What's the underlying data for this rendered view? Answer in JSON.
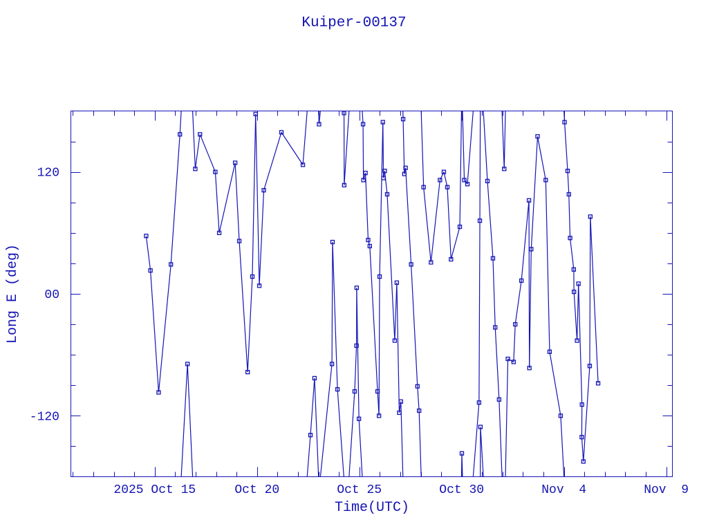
{
  "chart_data": {
    "type": "line",
    "title": "Kuiper-00137",
    "xlabel": "Time(UTC)",
    "ylabel": "Long E (deg)",
    "x_unit": "day of October 2025 (UTC)",
    "xlim": [
      10.9,
      40.3
    ],
    "ylim": [
      -180,
      180
    ],
    "x_ticks": [
      {
        "value": 15,
        "label": "2025 Oct 15"
      },
      {
        "value": 20,
        "label": "Oct 20"
      },
      {
        "value": 25,
        "label": "Oct 25"
      },
      {
        "value": 30,
        "label": "Oct 30"
      },
      {
        "value": 35,
        "label": "Nov  4"
      },
      {
        "value": 40,
        "label": "Nov  9"
      }
    ],
    "y_ticks": [
      {
        "value": 120,
        "label": "120"
      },
      {
        "value": 0,
        "label": "00"
      },
      {
        "value": -120,
        "label": "-120"
      }
    ],
    "x_minor_step": 1,
    "y_minor_step": 30,
    "grid": false,
    "wrap_longitude": true,
    "color": "#1414b4",
    "series": [
      {
        "name": "Long E",
        "x": [
          14.58,
          14.79,
          15.19,
          15.79,
          16.23,
          16.6,
          16.98,
          17.21,
          17.96,
          18.15,
          18.93,
          19.13,
          19.54,
          19.77,
          19.93,
          20.11,
          20.33,
          21.19,
          22.24,
          22.61,
          22.81,
          23.03,
          23.66,
          23.69,
          23.93,
          24.25,
          24.26,
          24.77,
          24.86,
          24.87,
          24.98,
          25.18,
          25.2,
          25.3,
          25.43,
          25.51,
          25.89,
          25.96,
          25.99,
          26.15,
          26.18,
          26.24,
          26.36,
          26.73,
          26.83,
          26.95,
          27.03,
          27.14,
          27.2,
          27.26,
          27.53,
          27.84,
          27.92,
          28.14,
          28.5,
          28.94,
          29.13,
          29.3,
          29.48,
          29.91,
          30.01,
          30.13,
          30.28,
          30.85,
          30.89,
          30.92,
          31.26,
          31.53,
          31.64,
          31.83,
          32.08,
          32.26,
          32.54,
          32.62,
          32.92,
          33.29,
          33.31,
          33.4,
          33.71,
          34.11,
          34.3,
          34.84,
          35.03,
          35.18,
          35.24,
          35.3,
          35.48,
          35.49,
          35.64,
          35.71,
          35.88,
          35.87,
          35.95,
          36.26,
          36.29,
          36.67
        ],
        "y": [
          57,
          23,
          -97,
          29,
          157,
          -69,
          123,
          157,
          120,
          60,
          129,
          52,
          -77,
          17,
          177,
          8,
          102,
          159,
          127,
          -139,
          -83,
          167,
          -69,
          51,
          -94,
          178,
          107,
          -96,
          -51,
          6,
          -123,
          167,
          112,
          119,
          53,
          47,
          -96,
          -120,
          17,
          169,
          114,
          121,
          98,
          -46,
          11,
          -117,
          -106,
          172,
          118,
          124,
          29,
          -91,
          -115,
          105,
          31,
          112,
          120,
          105,
          34,
          66,
          -157,
          112,
          108,
          -107,
          72,
          -131,
          111,
          35,
          -33,
          -104,
          123,
          -64,
          -67,
          -30,
          13,
          92,
          -73,
          44,
          155,
          112,
          -57,
          -120,
          169,
          121,
          98,
          55,
          24,
          2,
          -46,
          10,
          -109,
          -141,
          -165,
          -71,
          76,
          -88
        ]
      }
    ]
  }
}
